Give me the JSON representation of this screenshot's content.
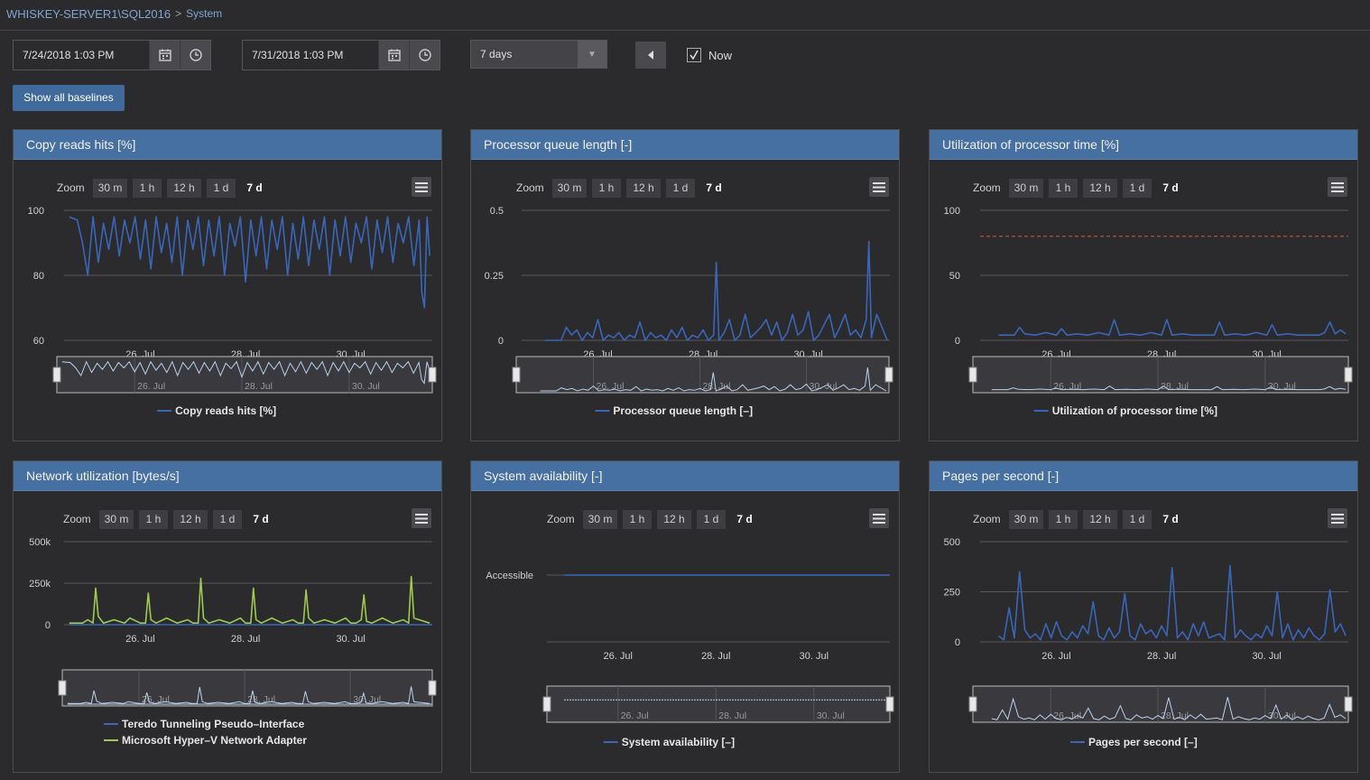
{
  "breadcrumb": {
    "server": "WHISKEY-SERVER1\\SQL2016",
    "separator": ">",
    "page": "System"
  },
  "toolbar": {
    "start_datetime": "7/24/2018 1:03 PM",
    "end_datetime": "7/31/2018 1:03 PM",
    "range_value": "7 days",
    "now_label": "Now",
    "now_checked": true,
    "baselines_button": "Show all baselines"
  },
  "zoom": {
    "label": "Zoom",
    "options": [
      "30 m",
      "1 h",
      "12 h",
      "1 d",
      "7 d"
    ],
    "selected": "7 d"
  },
  "colors": {
    "blue": "#3a66b8",
    "green": "#9fc94f",
    "threshold": "#d9534f",
    "header": "#4670a1"
  },
  "panels": [
    {
      "title": "Copy reads hits [%]",
      "chart_data": {
        "type": "line",
        "ylim": [
          60,
          100
        ],
        "yticks": [
          "100",
          "80",
          "60"
        ],
        "ytick_values": [
          100,
          80,
          60
        ],
        "xticks": [
          "26. Jul",
          "28. Jul",
          "30. Jul"
        ],
        "xtick_values": [
          26,
          28,
          30
        ],
        "xlim": [
          24.55,
          31.55
        ],
        "series": [
          {
            "name": "Copy reads hits [%]",
            "color": "#3a66b8",
            "x": [
              24.65,
              24.8,
              24.9,
              25.0,
              25.1,
              25.2,
              25.3,
              25.4,
              25.5,
              25.6,
              25.7,
              25.8,
              25.9,
              26.0,
              26.1,
              26.2,
              26.3,
              26.4,
              26.5,
              26.6,
              26.7,
              26.8,
              26.9,
              27.0,
              27.1,
              27.2,
              27.3,
              27.4,
              27.5,
              27.6,
              27.7,
              27.8,
              27.9,
              28.0,
              28.1,
              28.2,
              28.3,
              28.4,
              28.5,
              28.6,
              28.7,
              28.8,
              28.9,
              29.0,
              29.1,
              29.2,
              29.3,
              29.4,
              29.5,
              29.6,
              29.7,
              29.8,
              29.9,
              30.0,
              30.1,
              30.2,
              30.3,
              30.4,
              30.5,
              30.6,
              30.7,
              30.8,
              30.9,
              31.0,
              31.1,
              31.2,
              31.3,
              31.35,
              31.4,
              31.45,
              31.5
            ],
            "y": [
              98,
              97,
              90,
              80,
              98,
              84,
              96,
              88,
              98,
              86,
              97,
              90,
              98,
              85,
              97,
              82,
              98,
              87,
              96,
              84,
              98,
              80,
              97,
              88,
              98,
              83,
              97,
              86,
              98,
              80,
              96,
              89,
              98,
              78,
              97,
              86,
              98,
              82,
              97,
              88,
              98,
              80,
              96,
              85,
              98,
              83,
              97,
              88,
              98,
              80,
              97,
              86,
              98,
              84,
              96,
              90,
              98,
              82,
              97,
              87,
              98,
              84,
              96,
              90,
              98,
              83,
              97,
              75,
              70,
              98,
              86
            ]
          }
        ],
        "navigator_xticks": [
          "26. Jul",
          "28. Jul",
          "30. Jul"
        ],
        "legend": [
          "Copy reads hits [%]"
        ]
      }
    },
    {
      "title": "Processor queue length [-]",
      "chart_data": {
        "type": "line",
        "ylim": [
          0,
          0.5
        ],
        "yticks": [
          "0.5",
          "0.25",
          "0"
        ],
        "ytick_values": [
          0.5,
          0.25,
          0
        ],
        "xticks": [
          "26. Jul",
          "28. Jul",
          "30. Jul"
        ],
        "xtick_values": [
          26,
          28,
          30
        ],
        "xlim": [
          24.55,
          31.55
        ],
        "series": [
          {
            "name": "Processor queue length [-]",
            "color": "#3a66b8",
            "x": [
              25.0,
              25.3,
              25.4,
              25.5,
              25.6,
              25.7,
              25.8,
              25.9,
              26.0,
              26.1,
              26.2,
              26.3,
              26.4,
              26.5,
              26.6,
              26.7,
              26.8,
              26.9,
              27.0,
              27.1,
              27.2,
              27.3,
              27.4,
              27.5,
              27.6,
              27.7,
              27.8,
              27.9,
              28.0,
              28.1,
              28.2,
              28.25,
              28.3,
              28.4,
              28.5,
              28.6,
              28.7,
              28.8,
              28.9,
              29.0,
              29.1,
              29.2,
              29.3,
              29.4,
              29.5,
              29.6,
              29.7,
              29.8,
              29.9,
              30.0,
              30.1,
              30.2,
              30.3,
              30.4,
              30.5,
              30.6,
              30.7,
              30.8,
              30.9,
              31.0,
              31.1,
              31.15,
              31.2,
              31.3,
              31.4,
              31.5
            ],
            "y": [
              0,
              0,
              0.05,
              0.02,
              0.04,
              0,
              0.03,
              0.01,
              0.08,
              0,
              0.02,
              0.01,
              0.03,
              0,
              0.02,
              0.01,
              0.07,
              0,
              0.03,
              0.01,
              0.02,
              0,
              0.04,
              0.01,
              0.05,
              0,
              0.02,
              0.01,
              0.04,
              0,
              0.02,
              0.3,
              0,
              0.03,
              0.08,
              0,
              0.02,
              0.1,
              0.01,
              0.03,
              0.05,
              0.08,
              0.02,
              0.07,
              0,
              0.03,
              0.1,
              0.02,
              0.04,
              0.11,
              0,
              0.02,
              0.06,
              0.1,
              0.01,
              0.05,
              0.1,
              0.02,
              0.04,
              0.01,
              0.08,
              0.38,
              0.01,
              0.1,
              0.05,
              0
            ]
          }
        ],
        "navigator_xticks": [
          "26. Jul",
          "28. Jul",
          "30. Jul"
        ],
        "legend": [
          "Processor queue length [–]"
        ]
      }
    },
    {
      "title": "Utilization of processor time [%]",
      "chart_data": {
        "type": "line",
        "ylim": [
          0,
          100
        ],
        "yticks": [
          "100",
          "50",
          "0"
        ],
        "ytick_values": [
          100,
          50,
          0
        ],
        "xticks": [
          "26. Jul",
          "28. Jul",
          "30. Jul"
        ],
        "xtick_values": [
          26,
          28,
          30
        ],
        "xlim": [
          24.55,
          31.55
        ],
        "threshold": 80,
        "series": [
          {
            "name": "Utilization of processor time [%]",
            "color": "#3a66b8",
            "x": [
              24.9,
              25.2,
              25.3,
              25.4,
              25.6,
              25.8,
              26.0,
              26.1,
              26.2,
              26.4,
              26.6,
              26.8,
              27.0,
              27.1,
              27.2,
              27.4,
              27.6,
              27.8,
              28.0,
              28.1,
              28.2,
              28.4,
              28.6,
              28.8,
              29.0,
              29.1,
              29.2,
              29.4,
              29.6,
              29.8,
              30.0,
              30.1,
              30.2,
              30.4,
              30.6,
              30.8,
              31.0,
              31.1,
              31.2,
              31.3,
              31.4,
              31.5
            ],
            "y": [
              4,
              4,
              10,
              5,
              4,
              6,
              4,
              9,
              4,
              5,
              4,
              6,
              4,
              16,
              4,
              5,
              4,
              6,
              4,
              16,
              4,
              5,
              4,
              4,
              4,
              14,
              4,
              5,
              4,
              6,
              4,
              12,
              4,
              5,
              4,
              4,
              4,
              6,
              14,
              5,
              8,
              5
            ]
          }
        ],
        "navigator_xticks": [
          "26. Jul",
          "28. Jul",
          "30. Jul"
        ],
        "legend": [
          "Utilization of processor time [%]"
        ]
      }
    },
    {
      "title": "Network utilization [bytes/s]",
      "chart_data": {
        "type": "line",
        "ylim": [
          0,
          500000
        ],
        "yticks": [
          "500k",
          "250k",
          "0"
        ],
        "ytick_values": [
          500000,
          250000,
          0
        ],
        "xticks": [
          "26. Jul",
          "28. Jul",
          "30. Jul"
        ],
        "xtick_values": [
          26,
          28,
          30
        ],
        "xlim": [
          24.55,
          31.55
        ],
        "series": [
          {
            "name": "Teredo Tunneling Pseudo-Interface",
            "color": "#3a66b8",
            "x": [
              24.65,
              31.55
            ],
            "y": [
              0,
              0
            ]
          },
          {
            "name": "Microsoft Hyper-V Network Adapter",
            "color": "#9fc94f",
            "x": [
              24.65,
              24.9,
              25.0,
              25.1,
              25.15,
              25.2,
              25.3,
              25.5,
              25.7,
              25.8,
              26.0,
              26.1,
              26.15,
              26.2,
              26.3,
              26.5,
              26.7,
              26.9,
              27.0,
              27.1,
              27.15,
              27.2,
              27.3,
              27.5,
              27.7,
              27.9,
              28.0,
              28.1,
              28.15,
              28.2,
              28.3,
              28.5,
              28.7,
              28.9,
              29.0,
              29.1,
              29.15,
              29.2,
              29.3,
              29.5,
              29.7,
              29.9,
              30.0,
              30.1,
              30.2,
              30.25,
              30.3,
              30.4,
              30.6,
              30.8,
              31.0,
              31.1,
              31.15,
              31.2,
              31.3,
              31.5
            ],
            "y": [
              10000,
              10000,
              30000,
              10000,
              220000,
              50000,
              10000,
              30000,
              10000,
              40000,
              10000,
              10000,
              190000,
              30000,
              10000,
              40000,
              10000,
              30000,
              10000,
              10000,
              280000,
              40000,
              10000,
              30000,
              10000,
              40000,
              10000,
              10000,
              220000,
              30000,
              10000,
              40000,
              10000,
              30000,
              10000,
              10000,
              210000,
              40000,
              10000,
              30000,
              10000,
              40000,
              10000,
              10000,
              30000,
              180000,
              20000,
              10000,
              40000,
              10000,
              30000,
              10000,
              290000,
              40000,
              30000,
              10000
            ]
          }
        ],
        "navigator_xticks": [
          "26. Jul",
          "28. Jul",
          "30. Jul"
        ],
        "legend": [
          "Teredo Tunneling Pseudo–Interface",
          "Microsoft Hyper–V Network Adapter"
        ]
      }
    },
    {
      "title": "System availability [-]",
      "chart_data": {
        "type": "line",
        "yticks": [
          "Accessible"
        ],
        "ytick_values": [
          1
        ],
        "ylim": [
          0,
          1.5
        ],
        "xticks": [
          "26. Jul",
          "28. Jul",
          "30. Jul"
        ],
        "xtick_values": [
          26,
          28,
          30
        ],
        "xlim": [
          24.55,
          31.55
        ],
        "series": [
          {
            "name": "System availability [-]",
            "color": "#3a66b8",
            "x": [
              24.9,
              31.55
            ],
            "y": [
              1,
              1
            ]
          }
        ],
        "navigator_xticks": [
          "26. Jul",
          "28. Jul",
          "30. Jul"
        ],
        "legend": [
          "System availability [–]"
        ]
      }
    },
    {
      "title": "Pages per second [-]",
      "chart_data": {
        "type": "line",
        "ylim": [
          0,
          500
        ],
        "yticks": [
          "500",
          "250",
          "0"
        ],
        "ytick_values": [
          500,
          250,
          0
        ],
        "xticks": [
          "26. Jul",
          "28. Jul",
          "30. Jul"
        ],
        "xtick_values": [
          26,
          28,
          30
        ],
        "xlim": [
          24.55,
          31.55
        ],
        "series": [
          {
            "name": "Pages per second [–]",
            "color": "#3a66b8",
            "x": [
              24.9,
              25.0,
              25.1,
              25.2,
              25.3,
              25.4,
              25.5,
              25.6,
              25.7,
              25.8,
              25.9,
              26.0,
              26.1,
              26.2,
              26.3,
              26.4,
              26.5,
              26.6,
              26.7,
              26.8,
              26.9,
              27.0,
              27.1,
              27.2,
              27.3,
              27.4,
              27.5,
              27.6,
              27.7,
              27.8,
              27.9,
              28.0,
              28.1,
              28.2,
              28.3,
              28.4,
              28.5,
              28.6,
              28.7,
              28.8,
              28.9,
              29.0,
              29.1,
              29.2,
              29.3,
              29.4,
              29.5,
              29.6,
              29.7,
              29.8,
              29.9,
              30.0,
              30.1,
              30.2,
              30.3,
              30.4,
              30.5,
              30.6,
              30.7,
              30.8,
              30.9,
              31.0,
              31.1,
              31.2,
              31.3,
              31.4,
              31.5
            ],
            "y": [
              30,
              10,
              170,
              20,
              350,
              60,
              20,
              40,
              10,
              90,
              20,
              100,
              30,
              10,
              50,
              20,
              80,
              40,
              200,
              30,
              10,
              70,
              20,
              50,
              240,
              30,
              10,
              90,
              40,
              60,
              20,
              80,
              30,
              370,
              20,
              50,
              10,
              90,
              30,
              100,
              20,
              30,
              40,
              10,
              380,
              20,
              60,
              30,
              10,
              40,
              20,
              80,
              30,
              250,
              20,
              90,
              10,
              60,
              20,
              70,
              30,
              10,
              40,
              260,
              50,
              90,
              30
            ]
          }
        ],
        "navigator_xticks": [
          "26. Jul",
          "28. Jul",
          "30. Jul"
        ],
        "legend": [
          "Pages per second [–]"
        ]
      }
    }
  ]
}
